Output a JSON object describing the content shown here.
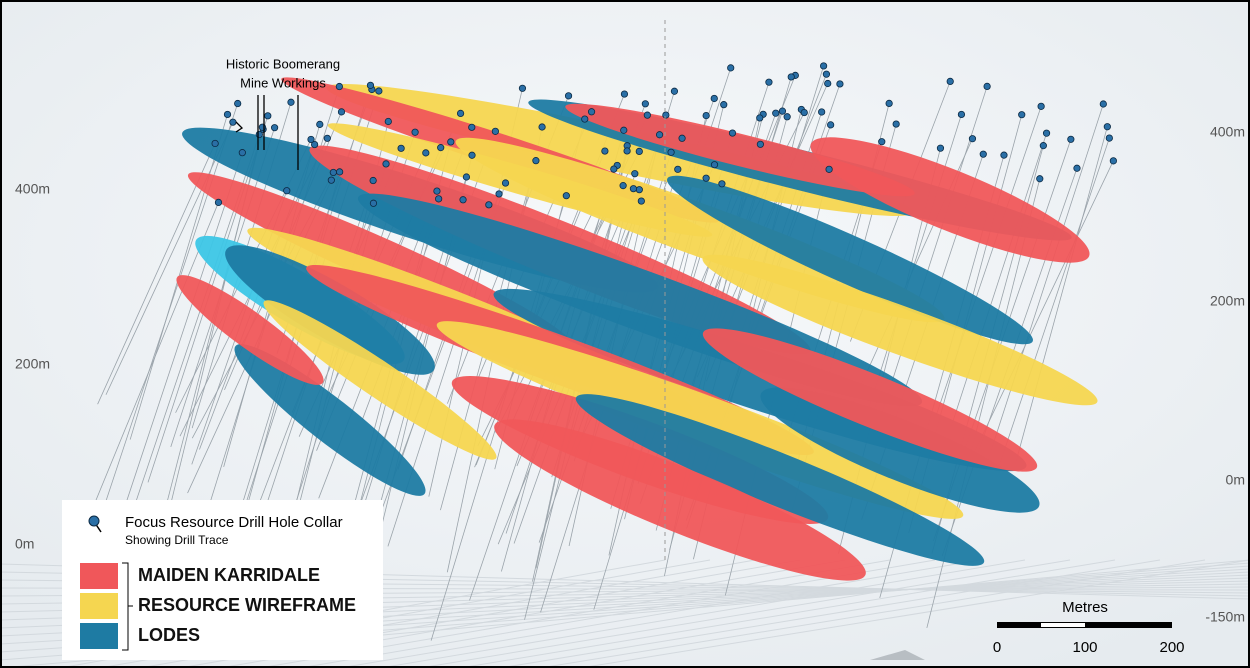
{
  "annotation": {
    "lines": [
      "Historic Boomerang",
      "Mine Workings"
    ]
  },
  "left_axis": [
    "400m",
    "200m",
    "0m"
  ],
  "right_axis": [
    "400m",
    "200m",
    "0m",
    "-150m"
  ],
  "legend": {
    "collar": {
      "title": "Focus Resource Drill Hole Collar",
      "subtitle": "Showing Drill Trace"
    },
    "items": [
      "MAIDEN KARRIDALE",
      "RESOURCE WIREFRAME",
      "LODES"
    ]
  },
  "scale_bar": {
    "title": "Metres",
    "ticks": [
      "0",
      "100",
      "200"
    ]
  }
}
